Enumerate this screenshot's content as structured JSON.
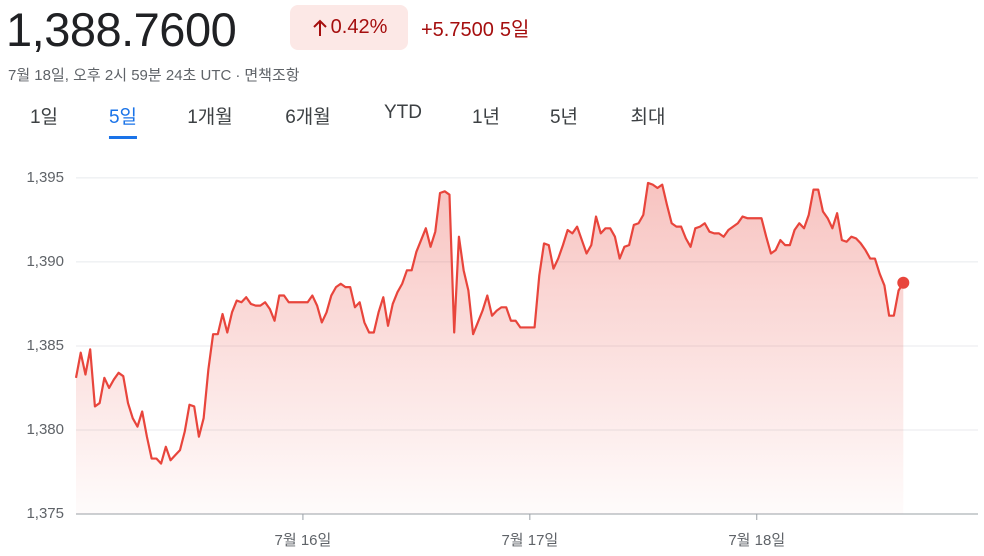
{
  "quote": {
    "price": "1,388.7600",
    "change_percent": "0.42%",
    "change": "+5.7500",
    "period": "5일",
    "timestamp": "7월 18일, 오후 2시 59분 24초 UTC",
    "separator": "·",
    "disclaimer": "면책조항"
  },
  "tabs": {
    "items": [
      "1일",
      "5일",
      "1개월",
      "6개월",
      "YTD",
      "1년",
      "5년",
      "최대"
    ],
    "selected": 1
  },
  "chart_data": {
    "type": "area",
    "color": "#e8453c",
    "grid": true,
    "ylim": [
      1375,
      1396.6
    ],
    "yticks": [
      {
        "value": 1375,
        "label": "1,375"
      },
      {
        "value": 1380,
        "label": "1,380"
      },
      {
        "value": 1385,
        "label": "1,385"
      },
      {
        "value": 1390,
        "label": "1,390"
      },
      {
        "value": 1395,
        "label": "1,395"
      }
    ],
    "xlim": [
      0,
      95.4
    ],
    "xticks": [
      {
        "value": 24,
        "label": "7월 16일"
      },
      {
        "value": 48,
        "label": "7월 17일"
      },
      {
        "value": 72,
        "label": "7월 18일"
      }
    ],
    "x": [
      0,
      0.5,
      1,
      1.5,
      2,
      2.5,
      3,
      3.5,
      4,
      4.5,
      5,
      5.5,
      6,
      6.5,
      7,
      7.5,
      8,
      8.5,
      9,
      9.5,
      10,
      10.5,
      11,
      11.5,
      12,
      12.5,
      13,
      13.5,
      14,
      14.5,
      15,
      15.5,
      16,
      16.5,
      17,
      17.5,
      18,
      18.5,
      19,
      19.5,
      20,
      20.5,
      21,
      21.5,
      22,
      22.5,
      23,
      23.5,
      24,
      24.5,
      25,
      25.5,
      26,
      26.5,
      27,
      27.5,
      28,
      28.5,
      29,
      29.5,
      30,
      30.5,
      31,
      31.5,
      32,
      32.5,
      33,
      33.5,
      34,
      34.5,
      35,
      35.5,
      36,
      36.5,
      37,
      37.5,
      38,
      38.5,
      39,
      39.5,
      40,
      40.5,
      41,
      41.5,
      42,
      42.5,
      43,
      43.5,
      44,
      44.5,
      45,
      45.5,
      46,
      46.5,
      47,
      47.5,
      48,
      48.5,
      49,
      49.5,
      50,
      50.5,
      51,
      51.5,
      52,
      52.5,
      53,
      53.5,
      54,
      54.5,
      55,
      55.5,
      56,
      56.5,
      57,
      57.5,
      58,
      58.5,
      59,
      59.5,
      60,
      60.5,
      61,
      61.5,
      62,
      62.5,
      63,
      63.5,
      64,
      64.5,
      65,
      65.5,
      66,
      66.5,
      67,
      67.5,
      68,
      68.5,
      69,
      69.5,
      70,
      70.5,
      71,
      71.5,
      72,
      72.5,
      73,
      73.5,
      74,
      74.5,
      75,
      75.5,
      76,
      76.5,
      77,
      77.5,
      78,
      78.5,
      79,
      79.5,
      80,
      80.5,
      81,
      81.5,
      82,
      82.5,
      83,
      83.5,
      84,
      84.5,
      85,
      85.5,
      86,
      86.5,
      87,
      87.5
    ],
    "values": [
      1383.1,
      1384.6,
      1383.3,
      1384.8,
      1381.4,
      1381.6,
      1383.1,
      1382.5,
      1383.0,
      1383.4,
      1383.2,
      1381.6,
      1380.7,
      1380.2,
      1381.1,
      1379.6,
      1378.3,
      1378.3,
      1378.0,
      1379.0,
      1378.2,
      1378.5,
      1378.8,
      1379.9,
      1381.5,
      1381.4,
      1379.6,
      1380.7,
      1383.6,
      1385.7,
      1385.7,
      1386.9,
      1385.8,
      1387.0,
      1387.7,
      1387.6,
      1387.9,
      1387.5,
      1387.4,
      1387.4,
      1387.6,
      1387.2,
      1386.5,
      1388.0,
      1388.0,
      1387.6,
      1387.6,
      1387.6,
      1387.6,
      1387.6,
      1388.0,
      1387.4,
      1386.4,
      1387.0,
      1388.0,
      1388.5,
      1388.7,
      1388.5,
      1388.5,
      1387.3,
      1387.6,
      1386.4,
      1385.8,
      1385.8,
      1387.0,
      1387.9,
      1386.2,
      1387.5,
      1388.2,
      1388.7,
      1389.5,
      1389.5,
      1390.6,
      1391.3,
      1392.0,
      1390.9,
      1391.8,
      1394.1,
      1394.2,
      1394.0,
      1385.8,
      1391.5,
      1389.5,
      1388.3,
      1385.7,
      1386.4,
      1387.1,
      1388.0,
      1386.8,
      1387.1,
      1387.3,
      1387.3,
      1386.5,
      1386.5,
      1386.1,
      1386.1,
      1386.1,
      1386.1,
      1389.2,
      1391.1,
      1391.0,
      1389.6,
      1390.2,
      1391.0,
      1391.9,
      1391.7,
      1392.1,
      1391.3,
      1390.5,
      1391.0,
      1392.7,
      1391.7,
      1392.0,
      1392.0,
      1391.5,
      1390.2,
      1390.9,
      1391.0,
      1392.2,
      1392.3,
      1392.8,
      1394.7,
      1394.6,
      1394.4,
      1394.6,
      1393.4,
      1392.3,
      1392.1,
      1392.1,
      1391.4,
      1390.9,
      1392.0,
      1392.1,
      1392.3,
      1391.8,
      1391.7,
      1391.7,
      1391.5,
      1391.9,
      1392.1,
      1392.3,
      1392.7,
      1392.6,
      1392.6,
      1392.6,
      1392.6,
      1391.5,
      1390.5,
      1390.7,
      1391.3,
      1391.0,
      1391.0,
      1391.9,
      1392.3,
      1392.0,
      1392.8,
      1394.3,
      1394.3,
      1393.0,
      1392.6,
      1392.0,
      1392.9,
      1391.3,
      1391.2,
      1391.5,
      1391.4,
      1391.1,
      1390.7,
      1390.2,
      1390.2,
      1389.3,
      1388.6,
      1386.8,
      1386.8,
      1388.3,
      1388.76
    ]
  }
}
